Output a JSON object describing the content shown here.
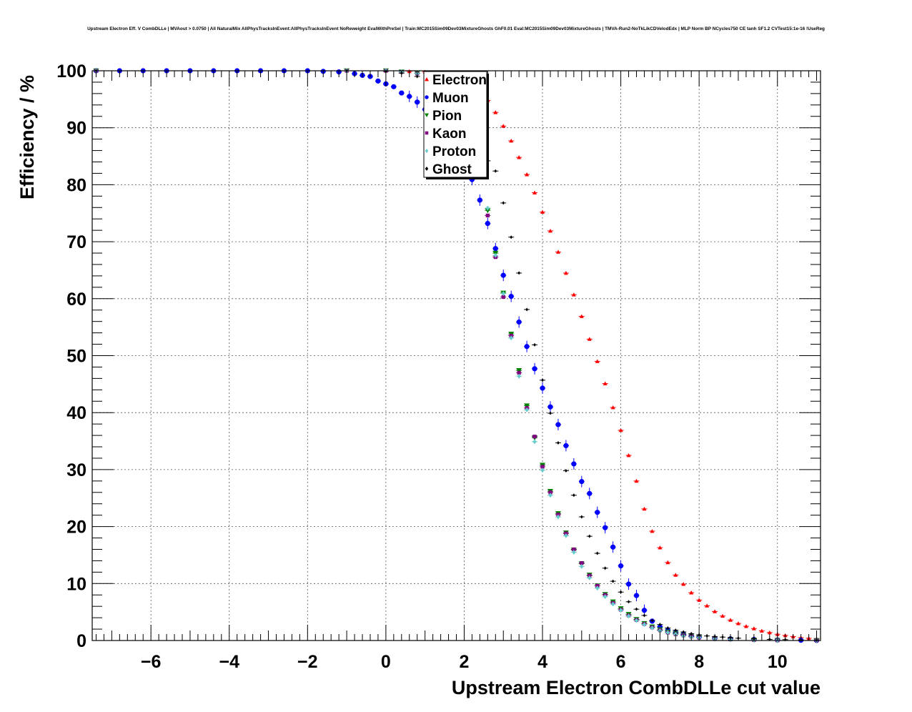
{
  "chart_data": {
    "type": "scatter",
    "title": "Upstream Electron Eff. V CombDLLe | MVAout > 0.0750 | All NaturalMix AllPhysTracksInEvent:AllPhysTracksInEvent NoReweight EvalWithPreSel | Train:MC2015Sim09Dev03MixtureGhosts GhF0.01 Eval:MC2015Sim09Dev03MixtureGhosts | TMVA-Run2-NoTkLikCDVelodEdx | MLP Norm BP NCycles750 CE tanh SF1.2 CVTest15:1e-16 !UseReg",
    "xlabel": "Upstream Electron CombDLLe cut value",
    "ylabel": "Efficiency / %",
    "xlim": [
      -7.5,
      11.1
    ],
    "ylim": [
      0,
      100
    ],
    "x_ticks": [
      -6,
      -4,
      -2,
      0,
      2,
      4,
      6,
      8,
      10
    ],
    "x_tick_labels": [
      "−6",
      "−4",
      "−2",
      "0",
      "2",
      "4",
      "6",
      "8",
      "10"
    ],
    "y_ticks": [
      0,
      10,
      20,
      30,
      40,
      50,
      60,
      70,
      80,
      90,
      100
    ],
    "y_tick_labels": [
      "0",
      "10",
      "20",
      "30",
      "40",
      "50",
      "60",
      "70",
      "80",
      "90",
      "100"
    ],
    "grid": true,
    "legend_position": "top-center",
    "series": [
      {
        "name": "Electron",
        "color": "#ff0000",
        "marker": "triangle-up",
        "points": [
          [
            -7.4,
            100
          ],
          [
            -1,
            100
          ],
          [
            0,
            100
          ],
          [
            0.6,
            99.9
          ],
          [
            1,
            99.8
          ],
          [
            1.4,
            99.5
          ],
          [
            1.8,
            98.5
          ],
          [
            2.2,
            96.5
          ],
          [
            2.6,
            94.8
          ],
          [
            2.8,
            92.7
          ],
          [
            3.0,
            90.3
          ],
          [
            3.2,
            87.7
          ],
          [
            3.4,
            84.8
          ],
          [
            3.6,
            81.8
          ],
          [
            3.8,
            78.6
          ],
          [
            4.0,
            75.2
          ],
          [
            4.2,
            71.9
          ],
          [
            4.4,
            68.2
          ],
          [
            4.6,
            64.5
          ],
          [
            4.8,
            60.7
          ],
          [
            5.0,
            56.9
          ],
          [
            5.2,
            52.9
          ],
          [
            5.4,
            49.0
          ],
          [
            5.6,
            45.1
          ],
          [
            5.8,
            40.9
          ],
          [
            6.0,
            36.9
          ],
          [
            6.2,
            32.5
          ],
          [
            6.4,
            28.0
          ],
          [
            6.6,
            23.1
          ],
          [
            6.8,
            19.2
          ],
          [
            7.0,
            16.3
          ],
          [
            7.2,
            13.7
          ],
          [
            7.4,
            11.5
          ],
          [
            7.6,
            9.9
          ],
          [
            7.8,
            8.4
          ],
          [
            8.0,
            7.1
          ],
          [
            8.2,
            6.1
          ],
          [
            8.4,
            5.1
          ],
          [
            8.6,
            4.3
          ],
          [
            8.8,
            3.6
          ],
          [
            9.0,
            3.0
          ],
          [
            9.2,
            2.5
          ],
          [
            9.4,
            2.1
          ],
          [
            9.6,
            1.7
          ],
          [
            9.8,
            1.4
          ],
          [
            10.0,
            1.1
          ],
          [
            10.2,
            0.9
          ],
          [
            10.4,
            0.7
          ],
          [
            10.6,
            0.5
          ],
          [
            10.8,
            0.4
          ],
          [
            11.0,
            0.3
          ]
        ]
      },
      {
        "name": "Muon",
        "color": "#0000ff",
        "marker": "circle",
        "points": [
          [
            -7.4,
            100
          ],
          [
            -6.8,
            100
          ],
          [
            -6.2,
            100
          ],
          [
            -5.6,
            100
          ],
          [
            -5.0,
            100
          ],
          [
            -4.4,
            100
          ],
          [
            -3.8,
            100
          ],
          [
            -3.2,
            100
          ],
          [
            -2.6,
            100
          ],
          [
            -2.0,
            100
          ],
          [
            -1.6,
            99.9
          ],
          [
            -1.2,
            99.8
          ],
          [
            -0.8,
            99.5
          ],
          [
            -0.6,
            99.2
          ],
          [
            -0.4,
            99.0
          ],
          [
            -0.2,
            98.2
          ],
          [
            0.0,
            97.7
          ],
          [
            0.2,
            97.2
          ],
          [
            0.4,
            96.1
          ],
          [
            0.6,
            95.5
          ],
          [
            0.8,
            94.5
          ],
          [
            1.0,
            93.2
          ],
          [
            1.2,
            91.6
          ],
          [
            1.4,
            89.8
          ],
          [
            1.6,
            87.5
          ],
          [
            1.8,
            86.0
          ],
          [
            2.0,
            83.9
          ],
          [
            2.2,
            80.9
          ],
          [
            2.4,
            77.3
          ],
          [
            2.6,
            73.2
          ],
          [
            2.8,
            68.8
          ],
          [
            3.0,
            64.1
          ],
          [
            3.2,
            60.4
          ],
          [
            3.4,
            55.9
          ],
          [
            3.6,
            51.6
          ],
          [
            3.8,
            47.7
          ],
          [
            4.0,
            44.3
          ],
          [
            4.2,
            41.0
          ],
          [
            4.4,
            37.9
          ],
          [
            4.6,
            34.2
          ],
          [
            4.8,
            31.0
          ],
          [
            5.0,
            27.9
          ],
          [
            5.2,
            25.8
          ],
          [
            5.4,
            22.5
          ],
          [
            5.6,
            19.8
          ],
          [
            5.8,
            16.4
          ],
          [
            6.0,
            13.1
          ],
          [
            6.2,
            9.9
          ],
          [
            6.4,
            7.9
          ],
          [
            6.6,
            5.3
          ],
          [
            6.8,
            3.4
          ],
          [
            7.0,
            2.4
          ],
          [
            7.2,
            1.8
          ],
          [
            7.4,
            1.4
          ],
          [
            7.6,
            1.1
          ],
          [
            7.8,
            0.8
          ],
          [
            8.0,
            0.6
          ],
          [
            8.4,
            0.4
          ],
          [
            8.8,
            0.3
          ],
          [
            9.4,
            0.2
          ],
          [
            10.0,
            0.1
          ],
          [
            10.6,
            0.05
          ],
          [
            11.0,
            0.02
          ]
        ]
      },
      {
        "name": "Pion",
        "color": "#008000",
        "marker": "triangle-down",
        "points": [
          [
            -7.4,
            100
          ],
          [
            -1,
            100
          ],
          [
            0.0,
            100
          ],
          [
            0.4,
            99.8
          ],
          [
            0.8,
            99.6
          ],
          [
            1.2,
            99.2
          ],
          [
            1.6,
            97.5
          ],
          [
            2.0,
            93.0
          ],
          [
            2.4,
            85.0
          ],
          [
            2.6,
            75.5
          ],
          [
            2.8,
            68.0
          ],
          [
            3.0,
            61.0
          ],
          [
            3.2,
            53.8
          ],
          [
            3.4,
            47.4
          ],
          [
            3.6,
            41.2
          ],
          [
            3.8,
            35.6
          ],
          [
            4.0,
            30.8
          ],
          [
            4.2,
            26.2
          ],
          [
            4.4,
            22.3
          ],
          [
            4.6,
            18.9
          ],
          [
            4.8,
            15.9
          ],
          [
            5.0,
            13.5
          ],
          [
            5.2,
            11.5
          ],
          [
            5.4,
            9.6
          ],
          [
            5.6,
            8.1
          ],
          [
            5.8,
            6.8
          ],
          [
            6.0,
            5.6
          ],
          [
            6.2,
            4.6
          ],
          [
            6.4,
            3.7
          ],
          [
            6.6,
            3.0
          ],
          [
            6.8,
            2.4
          ],
          [
            7.0,
            1.9
          ],
          [
            7.2,
            1.5
          ],
          [
            7.4,
            1.2
          ],
          [
            7.6,
            0.9
          ],
          [
            7.8,
            0.7
          ],
          [
            8.0,
            0.5
          ],
          [
            8.4,
            0.3
          ],
          [
            8.8,
            0.2
          ],
          [
            9.4,
            0.1
          ],
          [
            10.0,
            0.05
          ],
          [
            11.0,
            0.02
          ]
        ]
      },
      {
        "name": "Kaon",
        "color": "#800080",
        "marker": "square",
        "points": [
          [
            -7.4,
            100
          ],
          [
            -1,
            100
          ],
          [
            0.0,
            100
          ],
          [
            0.4,
            99.8
          ],
          [
            0.8,
            99.5
          ],
          [
            1.2,
            99.0
          ],
          [
            1.6,
            97.2
          ],
          [
            2.0,
            92.5
          ],
          [
            2.4,
            84.5
          ],
          [
            2.6,
            74.6
          ],
          [
            2.8,
            67.3
          ],
          [
            3.0,
            60.3
          ],
          [
            3.2,
            53.5
          ],
          [
            3.4,
            47.0
          ],
          [
            3.6,
            40.8
          ],
          [
            3.8,
            35.8
          ],
          [
            4.0,
            30.5
          ],
          [
            4.2,
            26.0
          ],
          [
            4.4,
            22.1
          ],
          [
            4.6,
            18.8
          ],
          [
            4.8,
            16.0
          ],
          [
            5.0,
            13.6
          ],
          [
            5.2,
            11.4
          ],
          [
            5.4,
            9.6
          ],
          [
            5.6,
            8.0
          ],
          [
            5.8,
            6.6
          ],
          [
            6.0,
            5.4
          ],
          [
            6.2,
            4.4
          ],
          [
            6.4,
            3.6
          ],
          [
            6.6,
            2.9
          ],
          [
            6.8,
            2.3
          ],
          [
            7.0,
            1.8
          ],
          [
            7.2,
            1.4
          ],
          [
            7.4,
            1.1
          ],
          [
            7.6,
            0.9
          ],
          [
            7.8,
            0.7
          ],
          [
            8.0,
            0.5
          ],
          [
            8.4,
            0.3
          ],
          [
            8.8,
            0.2
          ],
          [
            9.4,
            0.1
          ],
          [
            10.0,
            0.05
          ],
          [
            11.0,
            0.02
          ]
        ]
      },
      {
        "name": "Proton",
        "color": "#66cccc",
        "marker": "diamond",
        "points": [
          [
            -7.4,
            100
          ],
          [
            -1,
            100
          ],
          [
            0.0,
            100
          ],
          [
            0.4,
            99.8
          ],
          [
            0.8,
            99.5
          ],
          [
            1.2,
            99.0
          ],
          [
            1.6,
            97.0
          ],
          [
            2.0,
            92.3
          ],
          [
            2.4,
            84.7
          ],
          [
            2.6,
            75.9
          ],
          [
            2.8,
            67.6
          ],
          [
            3.0,
            60.9
          ],
          [
            3.2,
            53.1
          ],
          [
            3.4,
            46.4
          ],
          [
            3.6,
            40.5
          ],
          [
            3.8,
            34.9
          ],
          [
            4.0,
            29.9
          ],
          [
            4.2,
            25.5
          ],
          [
            4.4,
            21.7
          ],
          [
            4.6,
            18.4
          ],
          [
            4.8,
            15.5
          ],
          [
            5.0,
            13.0
          ],
          [
            5.2,
            11.0
          ],
          [
            5.4,
            9.2
          ],
          [
            5.6,
            7.7
          ],
          [
            5.8,
            6.4
          ],
          [
            6.0,
            5.3
          ],
          [
            6.2,
            4.3
          ],
          [
            6.4,
            3.5
          ],
          [
            6.6,
            2.8
          ],
          [
            6.8,
            2.2
          ],
          [
            7.0,
            1.7
          ],
          [
            7.2,
            1.4
          ],
          [
            7.4,
            1.1
          ],
          [
            7.6,
            0.8
          ],
          [
            7.8,
            0.6
          ],
          [
            8.0,
            0.5
          ],
          [
            8.4,
            0.3
          ],
          [
            8.8,
            0.2
          ],
          [
            9.4,
            0.1
          ],
          [
            10.0,
            0.05
          ],
          [
            11.0,
            0.02
          ]
        ]
      },
      {
        "name": "Ghost",
        "color": "#000000",
        "marker": "diamond",
        "points": [
          [
            -7.4,
            100
          ],
          [
            -1,
            100
          ],
          [
            0.0,
            99.9
          ],
          [
            0.4,
            99.6
          ],
          [
            0.8,
            99.0
          ],
          [
            1.2,
            97.5
          ],
          [
            1.6,
            94.0
          ],
          [
            2.0,
            89.0
          ],
          [
            2.4,
            86.0
          ],
          [
            2.6,
            84.2
          ],
          [
            2.8,
            82.4
          ],
          [
            3.0,
            76.8
          ],
          [
            3.2,
            70.8
          ],
          [
            3.4,
            64.5
          ],
          [
            3.6,
            58.1
          ],
          [
            3.8,
            51.9
          ],
          [
            4.0,
            45.7
          ],
          [
            4.2,
            39.9
          ],
          [
            4.4,
            34.7
          ],
          [
            4.6,
            29.8
          ],
          [
            4.8,
            25.5
          ],
          [
            5.0,
            21.7
          ],
          [
            5.2,
            18.3
          ],
          [
            5.4,
            15.3
          ],
          [
            5.6,
            12.7
          ],
          [
            5.8,
            10.4
          ],
          [
            6.0,
            8.5
          ],
          [
            6.2,
            6.8
          ],
          [
            6.4,
            5.5
          ],
          [
            6.6,
            4.4
          ],
          [
            6.8,
            3.5
          ],
          [
            7.0,
            2.8
          ],
          [
            7.2,
            2.2
          ],
          [
            7.4,
            1.8
          ],
          [
            7.6,
            1.5
          ],
          [
            7.8,
            1.2
          ],
          [
            8.0,
            1.0
          ],
          [
            8.2,
            0.8
          ],
          [
            8.4,
            0.7
          ],
          [
            8.6,
            0.6
          ],
          [
            8.8,
            0.5
          ],
          [
            9.0,
            0.4
          ],
          [
            9.4,
            0.3
          ],
          [
            9.8,
            0.2
          ],
          [
            10.2,
            0.15
          ],
          [
            10.6,
            0.1
          ],
          [
            11.0,
            0.05
          ]
        ]
      }
    ]
  }
}
